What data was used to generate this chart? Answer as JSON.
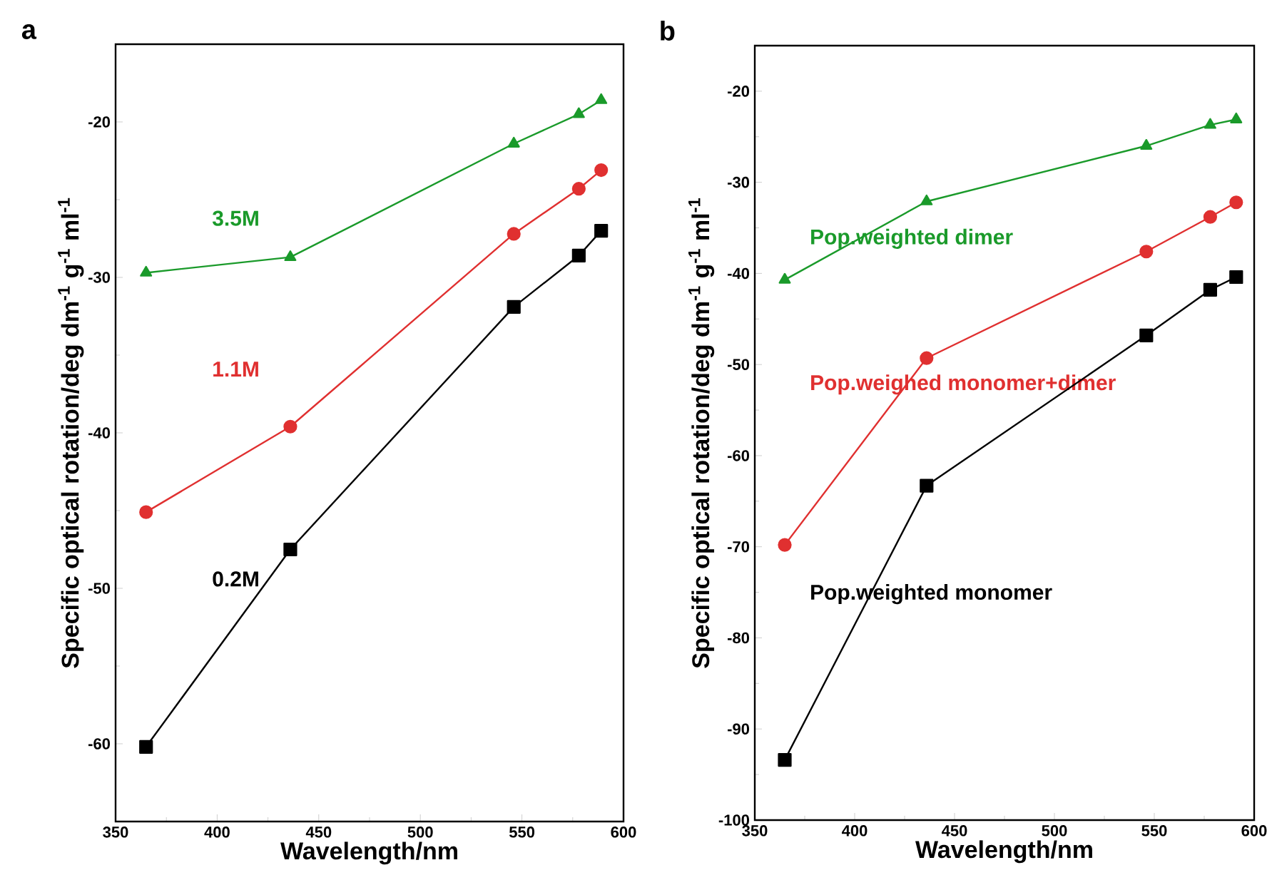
{
  "chart_data": [
    {
      "type": "line",
      "title": "a",
      "xlabel": "Wavelength/nm",
      "ylabel": "Specific optical rotation/deg dm$^{-1}$ g$^{-1}$ ml$^{-1}$",
      "x": [
        365,
        436,
        546,
        578,
        589
      ],
      "series": [
        {
          "name": "3.5M",
          "color": "#1a9a2a",
          "marker": "triangle",
          "values": [
            -29.7,
            -28.7,
            -21.4,
            -19.5,
            -18.6
          ]
        },
        {
          "name": "1.1M",
          "color": "#e03030",
          "marker": "circle",
          "values": [
            -45.1,
            -39.6,
            -27.2,
            -24.3,
            -23.1
          ]
        },
        {
          "name": "0.2M",
          "color": "#000000",
          "marker": "square",
          "values": [
            -60.2,
            -47.5,
            -31.9,
            -28.6,
            -27.0
          ]
        }
      ],
      "xlim": [
        350,
        600
      ],
      "xticks": [
        350,
        400,
        450,
        500,
        550,
        600
      ],
      "ylim": [
        -65,
        -15
      ],
      "yticks": [
        -60,
        -50,
        -40,
        -30,
        -20
      ],
      "grid": false,
      "legend": false
    },
    {
      "type": "line",
      "title": "b",
      "xlabel": "Wavelength/nm",
      "ylabel": "Specific optical rotation/deg dm$^{-1}$ g$^{-1}$ ml$^{-1}$",
      "x": [
        365,
        436,
        546,
        578,
        591
      ],
      "series": [
        {
          "name": "Pop.weighted dimer",
          "color": "#1a9a2a",
          "marker": "triangle",
          "values": [
            -40.7,
            -32.1,
            -26.0,
            -23.7,
            -23.1
          ]
        },
        {
          "name": "Pop.weighed monomer+dimer",
          "color": "#e03030",
          "marker": "circle",
          "values": [
            -69.8,
            -49.3,
            -37.6,
            -33.8,
            -32.2
          ]
        },
        {
          "name": "Pop.weighted monomer",
          "color": "#000000",
          "marker": "square",
          "values": [
            -93.4,
            -63.3,
            -46.8,
            -41.8,
            -40.4
          ]
        }
      ],
      "xlim": [
        350,
        600
      ],
      "xticks": [
        350,
        400,
        450,
        500,
        550,
        600
      ],
      "ylim": [
        -100,
        -15
      ],
      "yticks": [
        -100,
        -90,
        -80,
        -70,
        -60,
        -50,
        -40,
        -30,
        -20
      ],
      "grid": false,
      "legend": false
    }
  ]
}
